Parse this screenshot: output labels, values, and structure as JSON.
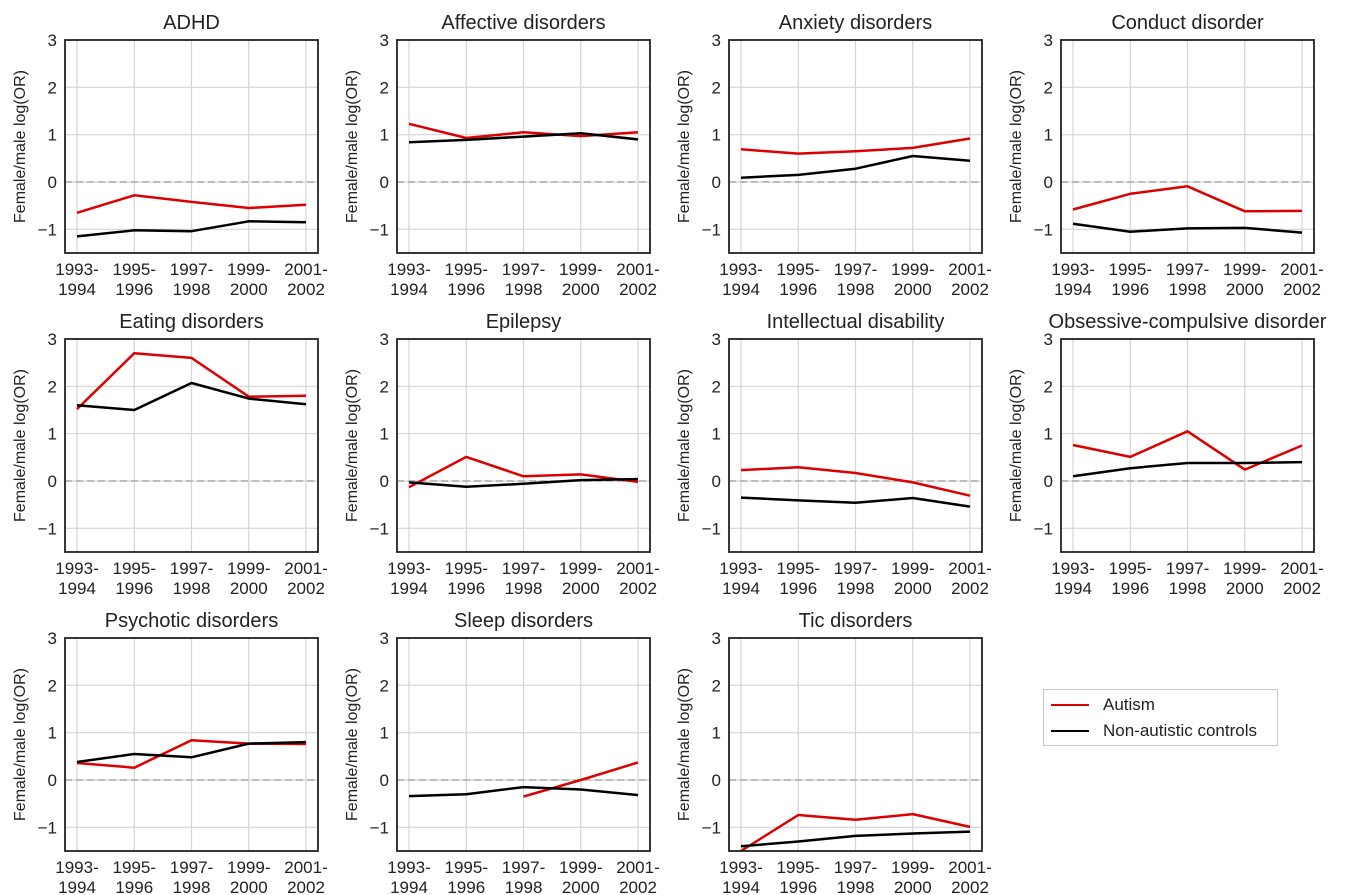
{
  "chart_data": [
    {
      "type": "line",
      "title": "ADHD",
      "ylabel": "Female/male log(OR)",
      "ylim": [
        -1.5,
        3
      ],
      "yticks": [
        "3",
        "2",
        "1",
        "0",
        "−1"
      ],
      "categories": [
        "1993-\n1994",
        "1995-\n1996",
        "1997-\n1998",
        "1999-\n2000",
        "2001-\n2002"
      ],
      "series": [
        {
          "name": "Autism",
          "color": "#dd0000",
          "values": [
            -0.65,
            -0.28,
            -0.42,
            -0.55,
            -0.48
          ]
        },
        {
          "name": "Non-autistic controls",
          "color": "#000000",
          "values": [
            -1.15,
            -1.02,
            -1.04,
            -0.83,
            -0.85
          ]
        }
      ]
    },
    {
      "type": "line",
      "title": "Affective disorders",
      "ylabel": "Female/male log(OR)",
      "ylim": [
        -1.5,
        3
      ],
      "yticks": [
        "3",
        "2",
        "1",
        "0",
        "−1"
      ],
      "categories": [
        "1993-\n1994",
        "1995-\n1996",
        "1997-\n1998",
        "1999-\n2000",
        "2001-\n2002"
      ],
      "series": [
        {
          "name": "Autism",
          "color": "#dd0000",
          "values": [
            1.23,
            0.93,
            1.05,
            0.97,
            1.05
          ]
        },
        {
          "name": "Non-autistic controls",
          "color": "#000000",
          "values": [
            0.84,
            0.89,
            0.96,
            1.03,
            0.9
          ]
        }
      ]
    },
    {
      "type": "line",
      "title": "Anxiety disorders",
      "ylabel": "Female/male log(OR)",
      "ylim": [
        -1.5,
        3
      ],
      "yticks": [
        "3",
        "2",
        "1",
        "0",
        "−1"
      ],
      "categories": [
        "1993-\n1994",
        "1995-\n1996",
        "1997-\n1998",
        "1999-\n2000",
        "2001-\n2002"
      ],
      "series": [
        {
          "name": "Autism",
          "color": "#dd0000",
          "values": [
            0.69,
            0.6,
            0.65,
            0.72,
            0.92
          ]
        },
        {
          "name": "Non-autistic controls",
          "color": "#000000",
          "values": [
            0.09,
            0.15,
            0.28,
            0.55,
            0.45
          ]
        }
      ]
    },
    {
      "type": "line",
      "title": "Conduct disorder",
      "ylabel": "Female/male log(OR)",
      "ylim": [
        -1.5,
        3
      ],
      "yticks": [
        "3",
        "2",
        "1",
        "0",
        "−1"
      ],
      "categories": [
        "1993-\n1994",
        "1995-\n1996",
        "1997-\n1998",
        "1999-\n2000",
        "2001-\n2002"
      ],
      "series": [
        {
          "name": "Autism",
          "color": "#dd0000",
          "values": [
            -0.58,
            -0.25,
            -0.09,
            -0.62,
            -0.61
          ]
        },
        {
          "name": "Non-autistic controls",
          "color": "#000000",
          "values": [
            -0.88,
            -1.05,
            -0.98,
            -0.97,
            -1.07
          ]
        }
      ]
    },
    {
      "type": "line",
      "title": "Eating disorders",
      "ylabel": "Female/male log(OR)",
      "ylim": [
        -1.5,
        3
      ],
      "yticks": [
        "3",
        "2",
        "1",
        "0",
        "−1"
      ],
      "categories": [
        "1993-\n1994",
        "1995-\n1996",
        "1997-\n1998",
        "1999-\n2000",
        "2001-\n2002"
      ],
      "series": [
        {
          "name": "Autism",
          "color": "#dd0000",
          "values": [
            1.52,
            2.7,
            2.6,
            1.78,
            1.8
          ]
        },
        {
          "name": "Non-autistic controls",
          "color": "#000000",
          "values": [
            1.6,
            1.5,
            2.07,
            1.74,
            1.62
          ]
        }
      ]
    },
    {
      "type": "line",
      "title": "Epilepsy",
      "ylabel": "Female/male log(OR)",
      "ylim": [
        -1.5,
        3
      ],
      "yticks": [
        "3",
        "2",
        "1",
        "0",
        "−1"
      ],
      "categories": [
        "1993-\n1994",
        "1995-\n1996",
        "1997-\n1998",
        "1999-\n2000",
        "2001-\n2002"
      ],
      "series": [
        {
          "name": "Autism",
          "color": "#dd0000",
          "values": [
            -0.13,
            0.51,
            0.1,
            0.14,
            -0.02
          ]
        },
        {
          "name": "Non-autistic controls",
          "color": "#000000",
          "values": [
            -0.03,
            -0.12,
            -0.06,
            0.02,
            0.04
          ]
        }
      ]
    },
    {
      "type": "line",
      "title": "Intellectual disability",
      "ylabel": "Female/male log(OR)",
      "ylim": [
        -1.5,
        3
      ],
      "yticks": [
        "3",
        "2",
        "1",
        "0",
        "−1"
      ],
      "categories": [
        "1993-\n1994",
        "1995-\n1996",
        "1997-\n1998",
        "1999-\n2000",
        "2001-\n2002"
      ],
      "series": [
        {
          "name": "Autism",
          "color": "#dd0000",
          "values": [
            0.23,
            0.29,
            0.17,
            -0.03,
            -0.31
          ]
        },
        {
          "name": "Non-autistic controls",
          "color": "#000000",
          "values": [
            -0.35,
            -0.41,
            -0.46,
            -0.36,
            -0.54
          ]
        }
      ]
    },
    {
      "type": "line",
      "title": "Obsessive-compulsive disorder",
      "ylabel": "Female/male log(OR)",
      "ylim": [
        -1.5,
        3
      ],
      "yticks": [
        "3",
        "2",
        "1",
        "0",
        "−1"
      ],
      "categories": [
        "1993-\n1994",
        "1995-\n1996",
        "1997-\n1998",
        "1999-\n2000",
        "2001-\n2002"
      ],
      "series": [
        {
          "name": "Autism",
          "color": "#dd0000",
          "values": [
            0.76,
            0.51,
            1.05,
            0.24,
            0.75
          ]
        },
        {
          "name": "Non-autistic controls",
          "color": "#000000",
          "values": [
            0.1,
            0.27,
            0.38,
            0.38,
            0.4
          ]
        }
      ]
    },
    {
      "type": "line",
      "title": "Psychotic disorders",
      "ylabel": "Female/male log(OR)",
      "ylim": [
        -1.5,
        3
      ],
      "yticks": [
        "3",
        "2",
        "1",
        "0",
        "−1"
      ],
      "categories": [
        "1993-\n1994",
        "1995-\n1996",
        "1997-\n1998",
        "1999-\n2000",
        "2001-\n2002"
      ],
      "series": [
        {
          "name": "Autism",
          "color": "#dd0000",
          "values": [
            0.36,
            0.26,
            0.84,
            0.77,
            0.76
          ]
        },
        {
          "name": "Non-autistic controls",
          "color": "#000000",
          "values": [
            0.38,
            0.55,
            0.48,
            0.77,
            0.8
          ]
        }
      ]
    },
    {
      "type": "line",
      "title": "Sleep disorders",
      "ylabel": "Female/male log(OR)",
      "ylim": [
        -1.5,
        3
      ],
      "yticks": [
        "3",
        "2",
        "1",
        "0",
        "−1"
      ],
      "categories": [
        "1993-\n1994",
        "1995-\n1996",
        "1997-\n1998",
        "1999-\n2000",
        "2001-\n2002"
      ],
      "series": [
        {
          "name": "Autism",
          "color": "#dd0000",
          "values": [
            null,
            null,
            -0.35,
            0.0,
            0.37
          ]
        },
        {
          "name": "Non-autistic controls",
          "color": "#000000",
          "values": [
            -0.34,
            -0.3,
            -0.15,
            -0.2,
            -0.32
          ]
        }
      ]
    },
    {
      "type": "line",
      "title": "Tic disorders",
      "ylabel": "Female/male log(OR)",
      "ylim": [
        -1.5,
        3
      ],
      "yticks": [
        "3",
        "2",
        "1",
        "0",
        "−1"
      ],
      "categories": [
        "1993-\n1994",
        "1995-\n1996",
        "1997-\n1998",
        "1999-\n2000",
        "2001-\n2002"
      ],
      "series": [
        {
          "name": "Autism",
          "color": "#dd0000",
          "values": [
            -1.5,
            -0.74,
            -0.84,
            -0.72,
            -0.99
          ]
        },
        {
          "name": "Non-autistic controls",
          "color": "#000000",
          "values": [
            -1.4,
            -1.3,
            -1.18,
            -1.13,
            -1.09
          ]
        }
      ]
    }
  ],
  "legend": {
    "position": "right of last row",
    "items": [
      {
        "label": "Autism",
        "color": "#dd0000"
      },
      {
        "label": "Non-autistic controls",
        "color": "#000000"
      }
    ]
  },
  "reference_line": {
    "y": 0,
    "style": "dashed",
    "color": "#aaaaaa"
  }
}
